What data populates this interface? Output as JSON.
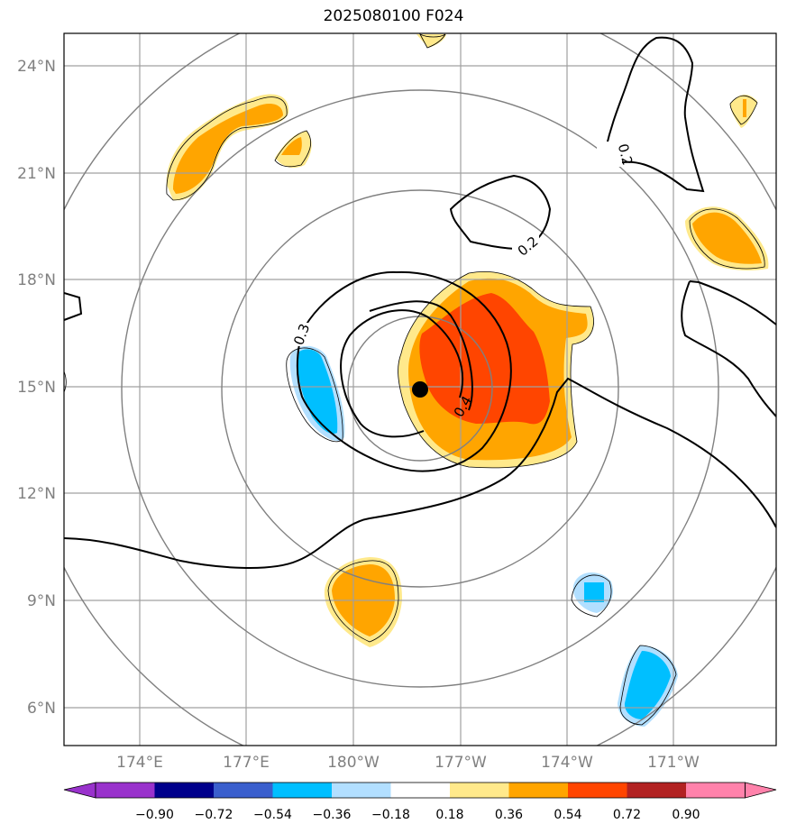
{
  "title": "2025080100 F024",
  "map": {
    "lat_labels": [
      "24°N",
      "21°N",
      "18°N",
      "15°N",
      "12°N",
      "9°N",
      "6°N"
    ],
    "lon_labels": [
      "174°E",
      "177°E",
      "180°W",
      "177°W",
      "174°W",
      "171°W"
    ],
    "contour_labels": [
      "0.2",
      "0.2",
      "0.3",
      "0.4"
    ],
    "center_marker": {
      "lat": 15.0,
      "lon": -178.7
    }
  },
  "colorbar": {
    "labels": [
      "−0.90",
      "−0.72",
      "−0.54",
      "−0.36",
      "−0.18",
      "0.18",
      "0.36",
      "0.54",
      "0.72",
      "0.90"
    ],
    "colors": [
      "#9932cc",
      "#00008b",
      "#3a5fcd",
      "#00bfff",
      "#b2dfff",
      "#ffffff",
      "#ffe98b",
      "#ffa500",
      "#ff4500",
      "#b22222",
      "#ff82ab"
    ]
  },
  "colors": {
    "light_yellow": "#ffe98b",
    "orange": "#ffa500",
    "red_orange": "#ff4500",
    "light_blue": "#b2dfff",
    "deep_sky_blue": "#00bfff",
    "grid": "#a0a0a0",
    "range_rings": "#808080"
  }
}
